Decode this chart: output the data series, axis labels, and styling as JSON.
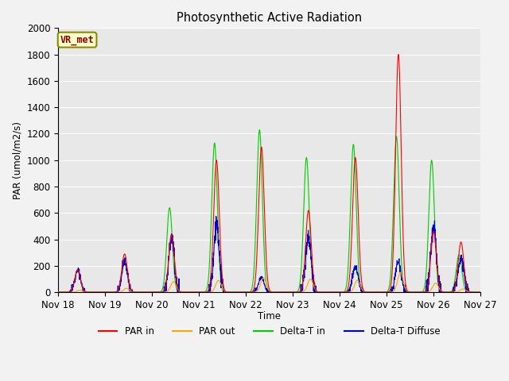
{
  "title": "Photosynthetic Active Radiation",
  "ylabel": "PAR (umol/m2/s)",
  "xlabel": "Time",
  "xlim": [
    0,
    216
  ],
  "ylim": [
    0,
    2000
  ],
  "yticks": [
    0,
    200,
    400,
    600,
    800,
    1000,
    1200,
    1400,
    1600,
    1800,
    2000
  ],
  "xtick_positions": [
    0,
    24,
    48,
    72,
    96,
    120,
    144,
    168,
    192,
    216
  ],
  "xtick_labels": [
    "Nov 18",
    "Nov 19",
    "Nov 20",
    "Nov 21",
    "Nov 22",
    "Nov 23",
    "Nov 24",
    "Nov 25",
    "Nov 26",
    "Nov 27"
  ],
  "plot_bg_color": "#e8e8e8",
  "fig_bg_color": "#f2f2f2",
  "grid_color": "#ffffff",
  "legend_label": "VR_met",
  "series_colors": {
    "par_in": "#ff0000",
    "par_out": "#ffa500",
    "delta_t_in": "#00cc00",
    "delta_t_diffuse": "#0000cc"
  },
  "legend_entries": [
    "PAR in",
    "PAR out",
    "Delta-T in",
    "Delta-T Diffuse"
  ]
}
